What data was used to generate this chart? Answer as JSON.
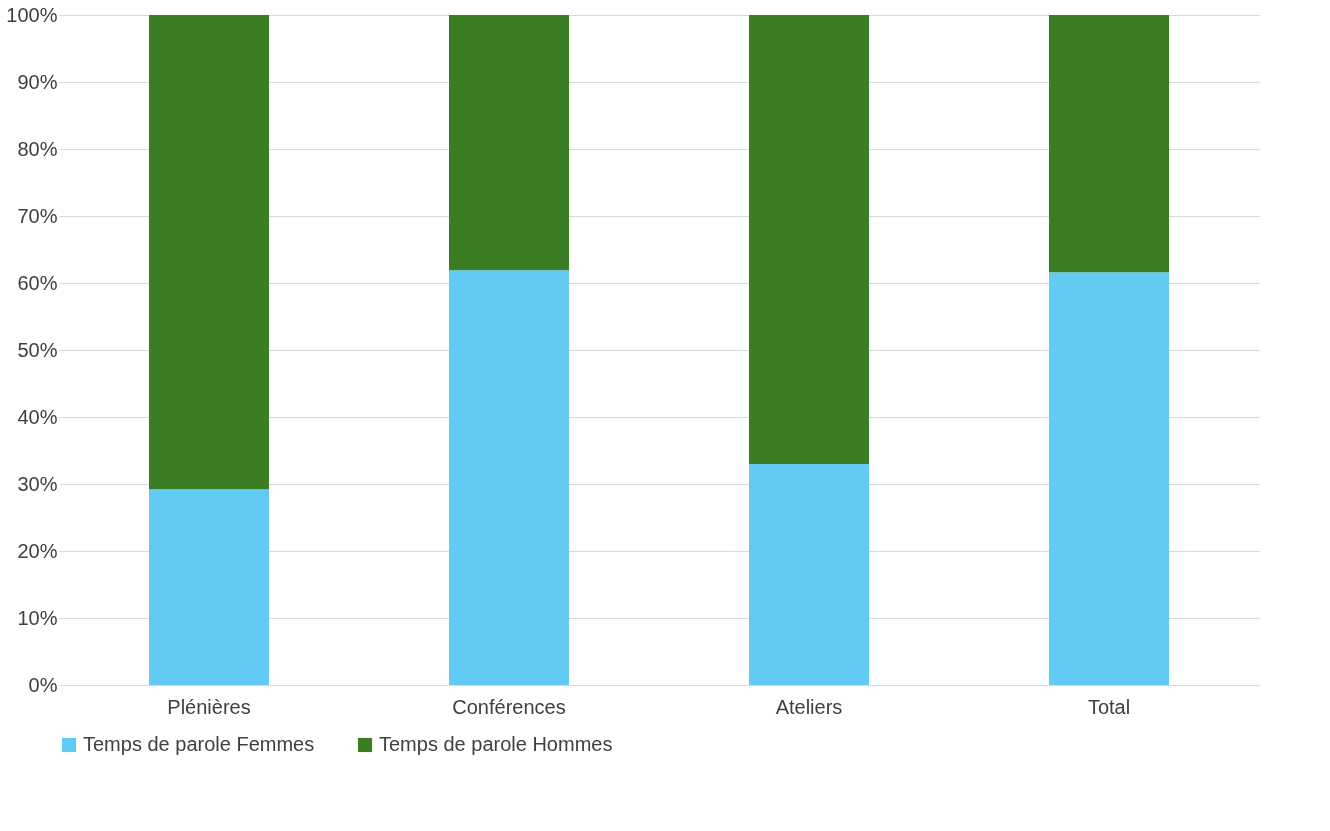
{
  "chart_data": {
    "type": "bar",
    "stacked": true,
    "categories": [
      "Plénières",
      "Conférences",
      "Ateliers",
      "Total"
    ],
    "series": [
      {
        "name": "Temps de parole Femmes",
        "color": "#62cbf3",
        "values": [
          29.2,
          61.9,
          33.0,
          61.6
        ]
      },
      {
        "name": "Temps de parole Hommes",
        "color": "#3b7d23",
        "values": [
          70.8,
          38.1,
          67.0,
          38.4
        ]
      }
    ],
    "ylim": [
      0,
      100
    ],
    "yticks": [
      {
        "value": 0,
        "label": "0%"
      },
      {
        "value": 10,
        "label": "10%"
      },
      {
        "value": 20,
        "label": "20%"
      },
      {
        "value": 30,
        "label": "30%"
      },
      {
        "value": 40,
        "label": "40%"
      },
      {
        "value": 50,
        "label": "50%"
      },
      {
        "value": 60,
        "label": "60%"
      },
      {
        "value": 70,
        "label": "70%"
      },
      {
        "value": 80,
        "label": "80%"
      },
      {
        "value": 90,
        "label": "90%"
      },
      {
        "value": 100,
        "label": "100%"
      }
    ],
    "grid": "y",
    "legend": "bottom"
  }
}
